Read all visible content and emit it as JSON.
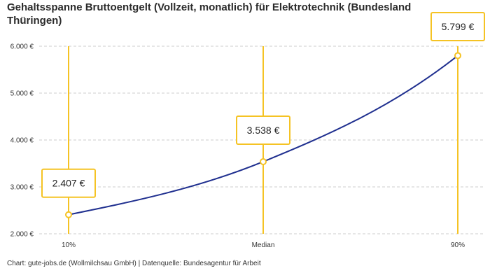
{
  "title": "Gehaltsspanne Bruttoentgelt (Vollzeit, monatlich) für Elektrotechnik (Bundesland Thüringen)",
  "footer": "Chart: gute-jobs.de (Wollmilchsau GmbH) | Datenquelle: Bundesagentur für Arbeit",
  "colors": {
    "line": "#1f2f8f",
    "accent": "#f5c324",
    "grid": "#cccccc"
  },
  "chart_data": {
    "type": "line",
    "title": "Gehaltsspanne Bruttoentgelt (Vollzeit, monatlich) für Elektrotechnik (Bundesland Thüringen)",
    "categories": [
      "10%",
      "Median",
      "90%"
    ],
    "values": [
      2407,
      3538,
      5799
    ],
    "value_labels": [
      "2.407 €",
      "3.538 €",
      "5.799 €"
    ],
    "yticks": [
      2000,
      3000,
      4000,
      5000,
      6000
    ],
    "ytick_labels": [
      "2.000 €",
      "3.000 €",
      "4.000 €",
      "5.000 €",
      "6.000 €"
    ],
    "ylim": [
      2000,
      6000
    ],
    "grid": true,
    "xlabel": "",
    "ylabel": ""
  }
}
